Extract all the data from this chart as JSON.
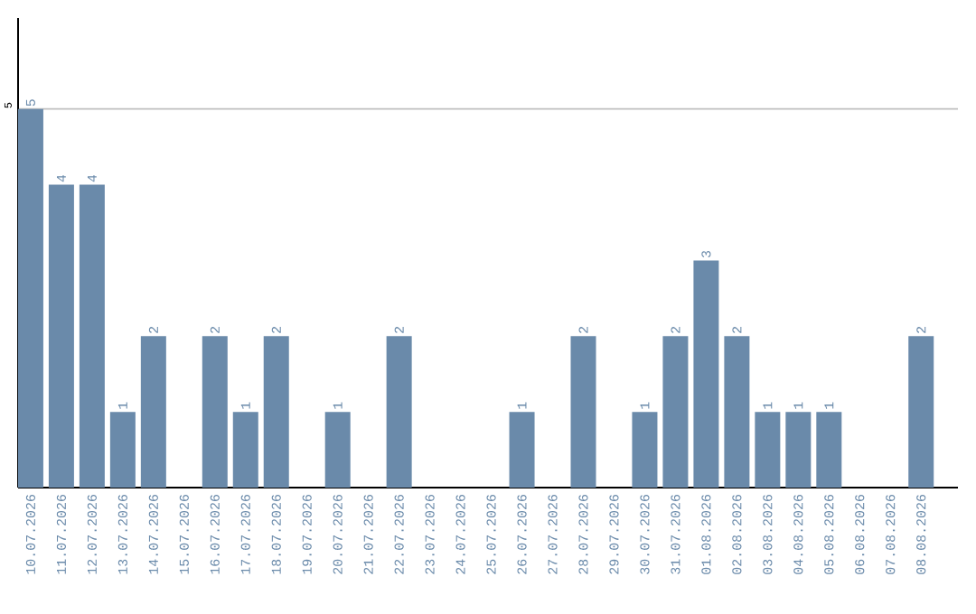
{
  "chart_data": {
    "type": "bar",
    "categories": [
      "10.07.2026",
      "11.07.2026",
      "12.07.2026",
      "13.07.2026",
      "14.07.2026",
      "15.07.2026",
      "16.07.2026",
      "17.07.2026",
      "18.07.2026",
      "19.07.2026",
      "20.07.2026",
      "21.07.2026",
      "22.07.2026",
      "23.07.2026",
      "24.07.2026",
      "25.07.2026",
      "26.07.2026",
      "27.07.2026",
      "28.07.2026",
      "29.07.2026",
      "30.07.2026",
      "31.07.2026",
      "01.08.2026",
      "02.08.2026",
      "03.08.2026",
      "04.08.2026",
      "05.08.2026",
      "06.08.2026",
      "07.08.2026",
      "08.08.2026"
    ],
    "values": [
      5,
      4,
      4,
      1,
      2,
      0,
      2,
      1,
      2,
      0,
      1,
      0,
      2,
      0,
      0,
      0,
      1,
      0,
      2,
      0,
      1,
      2,
      3,
      2,
      1,
      1,
      1,
      0,
      0,
      2
    ],
    "value_labels": [
      "5",
      "4",
      "4",
      "1",
      "2",
      null,
      "2",
      "1",
      "2",
      null,
      "1",
      null,
      "2",
      null,
      null,
      null,
      "1",
      null,
      "2",
      null,
      "1",
      "2",
      "3",
      "2",
      "1",
      "1",
      "1",
      null,
      null,
      "2"
    ],
    "color": "#6a8aaa",
    "ylim": [
      0,
      6.2
    ],
    "yticks": [
      5
    ],
    "grid": "y"
  }
}
